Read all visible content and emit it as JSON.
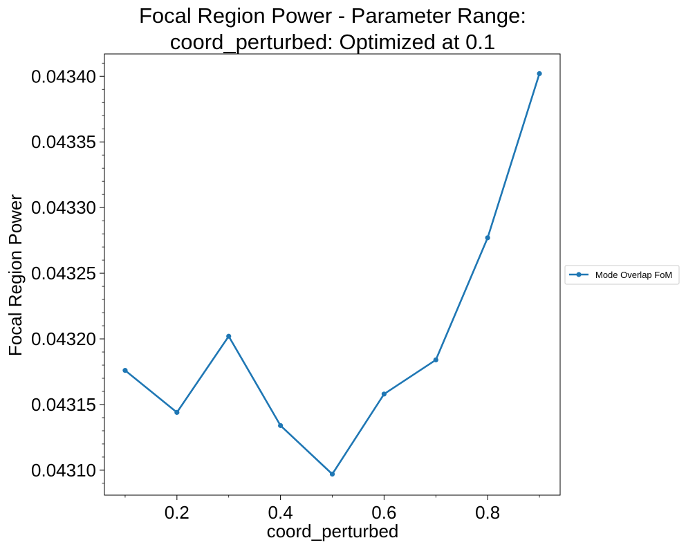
{
  "chart_data": {
    "type": "line",
    "title_lines": [
      "Focal Region Power - Parameter Range:",
      "coord_perturbed: Optimized at 0.1"
    ],
    "xlabel": "coord_perturbed",
    "ylabel": "Focal Region Power",
    "x": [
      0.1,
      0.2,
      0.3,
      0.4,
      0.5,
      0.6,
      0.7,
      0.8,
      0.9
    ],
    "series": [
      {
        "name": "Mode Overlap FoM",
        "color": "#1f77b4",
        "marker": "circle",
        "values": [
          0.043176,
          0.043144,
          0.043202,
          0.043134,
          0.043097,
          0.043158,
          0.043184,
          0.043277,
          0.043402
        ]
      }
    ],
    "xlim": [
      0.06,
      0.94
    ],
    "ylim": [
      0.043081,
      0.043417
    ],
    "x_major_ticks": [
      0.2,
      0.4,
      0.6,
      0.8
    ],
    "x_tick_labels": [
      "0.2",
      "0.4",
      "0.6",
      "0.8"
    ],
    "x_minor_ticks": [
      0.1,
      0.3,
      0.5,
      0.7,
      0.9
    ],
    "y_major_ticks": [
      0.0431,
      0.04315,
      0.0432,
      0.04325,
      0.0433,
      0.04335,
      0.0434
    ],
    "y_tick_labels": [
      "0.04310",
      "0.04315",
      "0.04320",
      "0.04325",
      "0.04330",
      "0.04335",
      "0.04340"
    ],
    "y_minor_step": 1e-05,
    "grid": false,
    "legend_position": "right, outside plot, vertically centered"
  }
}
